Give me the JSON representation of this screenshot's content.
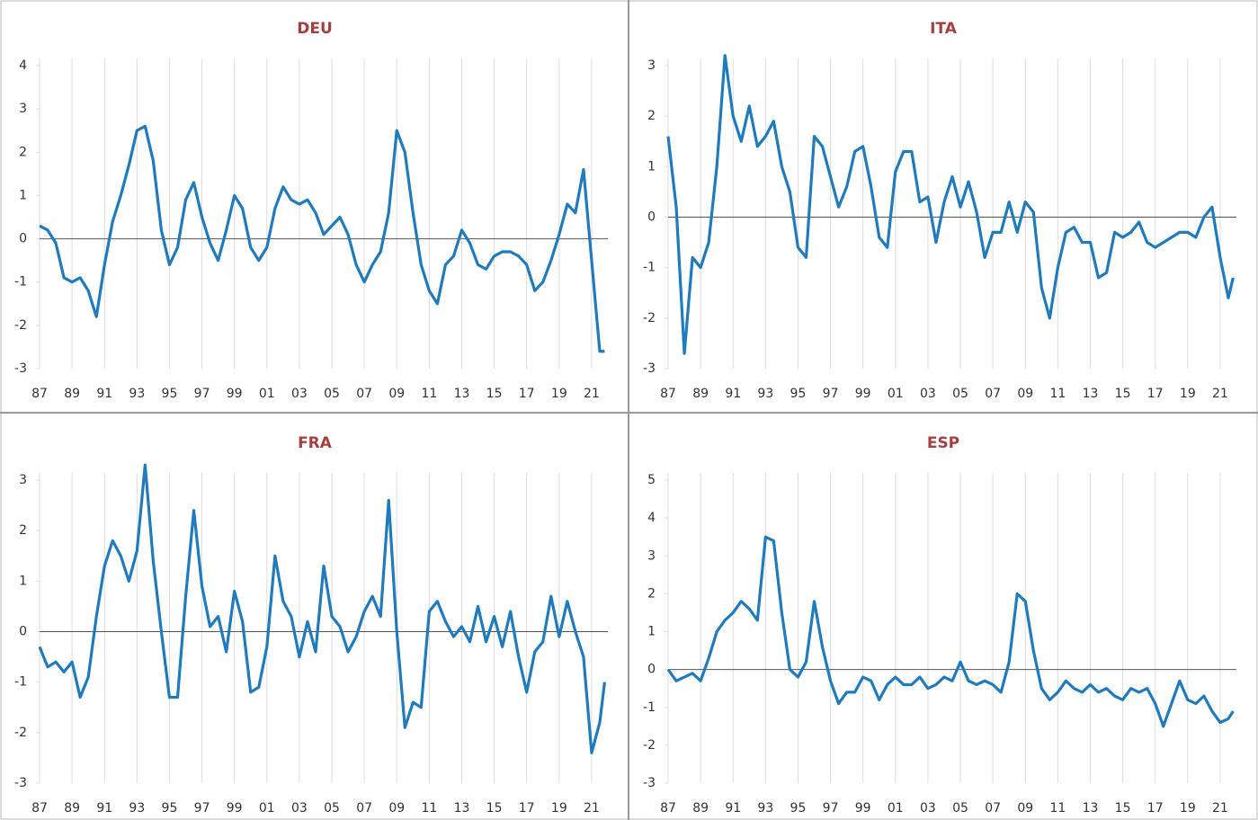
{
  "chart_data": [
    {
      "type": "line",
      "title": "DEU",
      "color": "#1f7bbd",
      "grid": true,
      "xlim": [
        1987,
        2022
      ],
      "ylim": [
        -3,
        4
      ],
      "yticks": [
        -3,
        -2,
        -1,
        0,
        1,
        2,
        3,
        4
      ],
      "xticks": [
        {
          "value": 1987,
          "label": "87"
        },
        {
          "value": 1989,
          "label": "89"
        },
        {
          "value": 1991,
          "label": "91"
        },
        {
          "value": 1993,
          "label": "93"
        },
        {
          "value": 1995,
          "label": "95"
        },
        {
          "value": 1997,
          "label": "97"
        },
        {
          "value": 1999,
          "label": "99"
        },
        {
          "value": 2001,
          "label": "01"
        },
        {
          "value": 2003,
          "label": "03"
        },
        {
          "value": 2005,
          "label": "05"
        },
        {
          "value": 2007,
          "label": "07"
        },
        {
          "value": 2009,
          "label": "09"
        },
        {
          "value": 2011,
          "label": "11"
        },
        {
          "value": 2013,
          "label": "13"
        },
        {
          "value": 2015,
          "label": "15"
        },
        {
          "value": 2017,
          "label": "17"
        },
        {
          "value": 2019,
          "label": "19"
        },
        {
          "value": 2021,
          "label": "21"
        }
      ],
      "x": [
        1987.0,
        1987.5,
        1988.0,
        1988.5,
        1989.0,
        1989.5,
        1990.0,
        1990.5,
        1991.0,
        1991.5,
        1992.0,
        1992.5,
        1993.0,
        1993.5,
        1994.0,
        1994.5,
        1995.0,
        1995.5,
        1996.0,
        1996.5,
        1997.0,
        1997.5,
        1998.0,
        1998.5,
        1999.0,
        1999.5,
        2000.0,
        2000.5,
        2001.0,
        2001.5,
        2002.0,
        2002.5,
        2003.0,
        2003.5,
        2004.0,
        2004.5,
        2005.0,
        2005.5,
        2006.0,
        2006.5,
        2007.0,
        2007.5,
        2008.0,
        2008.5,
        2009.0,
        2009.5,
        2010.0,
        2010.5,
        2011.0,
        2011.5,
        2012.0,
        2012.5,
        2013.0,
        2013.5,
        2014.0,
        2014.5,
        2015.0,
        2015.5,
        2016.0,
        2016.5,
        2017.0,
        2017.5,
        2018.0,
        2018.5,
        2019.0,
        2019.5,
        2020.0,
        2020.5,
        2021.0,
        2021.5,
        2021.8
      ],
      "values": [
        0.3,
        0.2,
        -0.1,
        -0.9,
        -1.0,
        -0.9,
        -1.2,
        -1.8,
        -0.6,
        0.4,
        1.0,
        1.7,
        2.5,
        2.6,
        1.8,
        0.2,
        -0.6,
        -0.2,
        0.9,
        1.3,
        0.5,
        -0.1,
        -0.5,
        0.2,
        1.0,
        0.7,
        -0.2,
        -0.5,
        -0.2,
        0.7,
        1.2,
        0.9,
        0.8,
        0.9,
        0.6,
        0.1,
        0.3,
        0.5,
        0.1,
        -0.6,
        -1.0,
        -0.6,
        -0.3,
        0.6,
        2.5,
        2.0,
        0.6,
        -0.6,
        -1.2,
        -1.5,
        -0.6,
        -0.4,
        0.2,
        -0.1,
        -0.6,
        -0.7,
        -0.4,
        -0.3,
        -0.3,
        -0.4,
        -0.6,
        -1.2,
        -1.0,
        -0.5,
        0.1,
        0.8,
        0.6,
        1.6,
        -0.5,
        -2.6,
        -2.6
      ]
    },
    {
      "type": "line",
      "title": "ITA",
      "color": "#1f7bbd",
      "grid": true,
      "xlim": [
        1987,
        2022
      ],
      "ylim": [
        -3,
        3
      ],
      "yticks": [
        -3,
        -2,
        -1,
        0,
        1,
        2,
        3
      ],
      "xticks": [
        {
          "value": 1987,
          "label": "87"
        },
        {
          "value": 1989,
          "label": "89"
        },
        {
          "value": 1991,
          "label": "91"
        },
        {
          "value": 1993,
          "label": "93"
        },
        {
          "value": 1995,
          "label": "95"
        },
        {
          "value": 1997,
          "label": "97"
        },
        {
          "value": 1999,
          "label": "99"
        },
        {
          "value": 2001,
          "label": "01"
        },
        {
          "value": 2003,
          "label": "03"
        },
        {
          "value": 2005,
          "label": "05"
        },
        {
          "value": 2007,
          "label": "07"
        },
        {
          "value": 2009,
          "label": "09"
        },
        {
          "value": 2011,
          "label": "11"
        },
        {
          "value": 2013,
          "label": "13"
        },
        {
          "value": 2015,
          "label": "15"
        },
        {
          "value": 2017,
          "label": "17"
        },
        {
          "value": 2019,
          "label": "19"
        },
        {
          "value": 2021,
          "label": "21"
        }
      ],
      "x": [
        1987.0,
        1987.5,
        1988.0,
        1988.5,
        1989.0,
        1989.5,
        1990.0,
        1990.5,
        1991.0,
        1991.5,
        1992.0,
        1992.5,
        1993.0,
        1993.5,
        1994.0,
        1994.5,
        1995.0,
        1995.5,
        1996.0,
        1996.5,
        1997.0,
        1997.5,
        1998.0,
        1998.5,
        1999.0,
        1999.5,
        2000.0,
        2000.5,
        2001.0,
        2001.5,
        2002.0,
        2002.5,
        2003.0,
        2003.5,
        2004.0,
        2004.5,
        2005.0,
        2005.5,
        2006.0,
        2006.5,
        2007.0,
        2007.5,
        2008.0,
        2008.5,
        2009.0,
        2009.5,
        2010.0,
        2010.5,
        2011.0,
        2011.5,
        2012.0,
        2012.5,
        2013.0,
        2013.5,
        2014.0,
        2014.5,
        2015.0,
        2015.5,
        2016.0,
        2016.5,
        2017.0,
        2017.5,
        2018.0,
        2018.5,
        2019.0,
        2019.5,
        2020.0,
        2020.5,
        2021.0,
        2021.5,
        2021.8
      ],
      "values": [
        1.6,
        0.2,
        -2.7,
        -0.8,
        -1.0,
        -0.5,
        1.0,
        3.2,
        2.0,
        1.5,
        2.2,
        1.4,
        1.6,
        1.9,
        1.0,
        0.5,
        -0.6,
        -0.8,
        1.6,
        1.4,
        0.8,
        0.2,
        0.6,
        1.3,
        1.4,
        0.6,
        -0.4,
        -0.6,
        0.9,
        1.3,
        1.3,
        0.3,
        0.4,
        -0.5,
        0.3,
        0.8,
        0.2,
        0.7,
        0.1,
        -0.8,
        -0.3,
        -0.3,
        0.3,
        -0.3,
        0.3,
        0.1,
        -1.4,
        -2.0,
        -1.0,
        -0.3,
        -0.2,
        -0.5,
        -0.5,
        -1.2,
        -1.1,
        -0.3,
        -0.4,
        -0.3,
        -0.1,
        -0.5,
        -0.6,
        -0.5,
        -0.4,
        -0.3,
        -0.3,
        -0.4,
        0.0,
        0.2,
        -0.8,
        -1.6,
        -1.2
      ]
    },
    {
      "type": "line",
      "title": "FRA",
      "color": "#1f7bbd",
      "grid": true,
      "xlim": [
        1987,
        2022
      ],
      "ylim": [
        -3,
        3
      ],
      "yticks": [
        -3,
        -2,
        -1,
        0,
        1,
        2,
        3
      ],
      "xticks": [
        {
          "value": 1987,
          "label": "87"
        },
        {
          "value": 1989,
          "label": "89"
        },
        {
          "value": 1991,
          "label": "91"
        },
        {
          "value": 1993,
          "label": "93"
        },
        {
          "value": 1995,
          "label": "95"
        },
        {
          "value": 1997,
          "label": "97"
        },
        {
          "value": 1999,
          "label": "99"
        },
        {
          "value": 2001,
          "label": "01"
        },
        {
          "value": 2003,
          "label": "03"
        },
        {
          "value": 2005,
          "label": "05"
        },
        {
          "value": 2007,
          "label": "07"
        },
        {
          "value": 2009,
          "label": "09"
        },
        {
          "value": 2011,
          "label": "11"
        },
        {
          "value": 2013,
          "label": "13"
        },
        {
          "value": 2015,
          "label": "15"
        },
        {
          "value": 2017,
          "label": "17"
        },
        {
          "value": 2019,
          "label": "19"
        },
        {
          "value": 2021,
          "label": "21"
        }
      ],
      "x": [
        1987.0,
        1987.5,
        1988.0,
        1988.5,
        1989.0,
        1989.5,
        1990.0,
        1990.5,
        1991.0,
        1991.5,
        1992.0,
        1992.5,
        1993.0,
        1993.5,
        1994.0,
        1994.5,
        1995.0,
        1995.5,
        1996.0,
        1996.5,
        1997.0,
        1997.5,
        1998.0,
        1998.5,
        1999.0,
        1999.5,
        2000.0,
        2000.5,
        2001.0,
        2001.5,
        2002.0,
        2002.5,
        2003.0,
        2003.5,
        2004.0,
        2004.5,
        2005.0,
        2005.5,
        2006.0,
        2006.5,
        2007.0,
        2007.5,
        2008.0,
        2008.5,
        2009.0,
        2009.5,
        2010.0,
        2010.5,
        2011.0,
        2011.5,
        2012.0,
        2012.5,
        2013.0,
        2013.5,
        2014.0,
        2014.5,
        2015.0,
        2015.5,
        2016.0,
        2016.5,
        2017.0,
        2017.5,
        2018.0,
        2018.5,
        2019.0,
        2019.5,
        2020.0,
        2020.5,
        2021.0,
        2021.5,
        2021.8
      ],
      "values": [
        -0.3,
        -0.7,
        -0.6,
        -0.8,
        -0.6,
        -1.3,
        -0.9,
        0.3,
        1.3,
        1.8,
        1.5,
        1.0,
        1.6,
        3.3,
        1.4,
        0.0,
        -1.3,
        -1.3,
        0.7,
        2.4,
        0.9,
        0.1,
        0.3,
        -0.4,
        0.8,
        0.2,
        -1.2,
        -1.1,
        -0.3,
        1.5,
        0.6,
        0.3,
        -0.5,
        0.2,
        -0.4,
        1.3,
        0.3,
        0.1,
        -0.4,
        -0.1,
        0.4,
        0.7,
        0.3,
        2.6,
        0.0,
        -1.9,
        -1.4,
        -1.5,
        0.4,
        0.6,
        0.2,
        -0.1,
        0.1,
        -0.2,
        0.5,
        -0.2,
        0.3,
        -0.3,
        0.4,
        -0.5,
        -1.2,
        -0.4,
        -0.2,
        0.7,
        -0.1,
        0.6,
        0.0,
        -0.5,
        -2.4,
        -1.8,
        -1.0
      ]
    },
    {
      "type": "line",
      "title": "ESP",
      "color": "#1f7bbd",
      "grid": true,
      "xlim": [
        1987,
        2022
      ],
      "ylim": [
        -3,
        5
      ],
      "yticks": [
        -3,
        -2,
        -1,
        0,
        1,
        2,
        3,
        4,
        5
      ],
      "xticks": [
        {
          "value": 1987,
          "label": "87"
        },
        {
          "value": 1989,
          "label": "89"
        },
        {
          "value": 1991,
          "label": "91"
        },
        {
          "value": 1993,
          "label": "93"
        },
        {
          "value": 1995,
          "label": "95"
        },
        {
          "value": 1997,
          "label": "97"
        },
        {
          "value": 1999,
          "label": "99"
        },
        {
          "value": 2001,
          "label": "01"
        },
        {
          "value": 2003,
          "label": "03"
        },
        {
          "value": 2005,
          "label": "05"
        },
        {
          "value": 2007,
          "label": "07"
        },
        {
          "value": 2009,
          "label": "09"
        },
        {
          "value": 2011,
          "label": "11"
        },
        {
          "value": 2013,
          "label": "13"
        },
        {
          "value": 2015,
          "label": "15"
        },
        {
          "value": 2017,
          "label": "17"
        },
        {
          "value": 2019,
          "label": "19"
        },
        {
          "value": 2021,
          "label": "21"
        }
      ],
      "x": [
        1987.0,
        1987.5,
        1988.0,
        1988.5,
        1989.0,
        1989.5,
        1990.0,
        1990.5,
        1991.0,
        1991.5,
        1992.0,
        1992.5,
        1993.0,
        1993.5,
        1994.0,
        1994.5,
        1995.0,
        1995.5,
        1996.0,
        1996.5,
        1997.0,
        1997.5,
        1998.0,
        1998.5,
        1999.0,
        1999.5,
        2000.0,
        2000.5,
        2001.0,
        2001.5,
        2002.0,
        2002.5,
        2003.0,
        2003.5,
        2004.0,
        2004.5,
        2005.0,
        2005.5,
        2006.0,
        2006.5,
        2007.0,
        2007.5,
        2008.0,
        2008.5,
        2009.0,
        2009.5,
        2010.0,
        2010.5,
        2011.0,
        2011.5,
        2012.0,
        2012.5,
        2013.0,
        2013.5,
        2014.0,
        2014.5,
        2015.0,
        2015.5,
        2016.0,
        2016.5,
        2017.0,
        2017.5,
        2018.0,
        2018.5,
        2019.0,
        2019.5,
        2020.0,
        2020.5,
        2021.0,
        2021.5,
        2021.8
      ],
      "values": [
        0.0,
        -0.3,
        -0.2,
        -0.1,
        -0.3,
        0.3,
        1.0,
        1.3,
        1.5,
        1.8,
        1.6,
        1.3,
        3.5,
        3.4,
        1.5,
        0.0,
        -0.2,
        0.2,
        1.8,
        0.6,
        -0.3,
        -0.9,
        -0.6,
        -0.6,
        -0.2,
        -0.3,
        -0.8,
        -0.4,
        -0.2,
        -0.4,
        -0.4,
        -0.2,
        -0.5,
        -0.4,
        -0.2,
        -0.3,
        0.2,
        -0.3,
        -0.4,
        -0.3,
        -0.4,
        -0.6,
        0.2,
        2.0,
        1.8,
        0.5,
        -0.5,
        -0.8,
        -0.6,
        -0.3,
        -0.5,
        -0.6,
        -0.4,
        -0.6,
        -0.5,
        -0.7,
        -0.8,
        -0.5,
        -0.6,
        -0.5,
        -0.9,
        -1.5,
        -0.9,
        -0.3,
        -0.8,
        -0.9,
        -0.7,
        -1.1,
        -1.4,
        -1.3,
        -1.1
      ]
    }
  ]
}
